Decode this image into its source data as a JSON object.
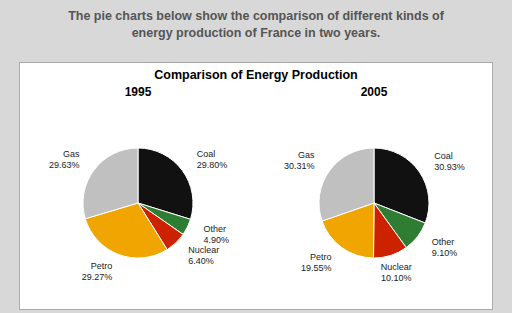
{
  "title": "The pie charts below show the comparison of different kinds of\nenergy production of France in two years.",
  "subtitle": "Comparison of Energy Production",
  "chart_data": [
    {
      "type": "pie",
      "title": "1995",
      "categories": [
        "Coal",
        "Other",
        "Nuclear",
        "Petro",
        "Gas"
      ],
      "values": [
        29.8,
        4.9,
        6.4,
        29.27,
        29.63
      ],
      "value_labels": [
        "29.80%",
        "4.90%",
        "6.40%",
        "29.27%",
        "29.63%"
      ],
      "data_labels": true,
      "colors": [
        "#111111",
        "#2e7d32",
        "#cc2200",
        "#f0a500",
        "#c0c0c0"
      ]
    },
    {
      "type": "pie",
      "title": "2005",
      "categories": [
        "Coal",
        "Other",
        "Nuclear",
        "Petro",
        "Gas"
      ],
      "values": [
        30.93,
        9.1,
        10.1,
        19.55,
        30.31
      ],
      "value_labels": [
        "30.93%",
        "9.10%",
        "10.10%",
        "19.55%",
        "30.31%"
      ],
      "data_labels": true,
      "colors": [
        "#111111",
        "#2e7d32",
        "#cc2200",
        "#f0a500",
        "#c0c0c0"
      ]
    }
  ]
}
